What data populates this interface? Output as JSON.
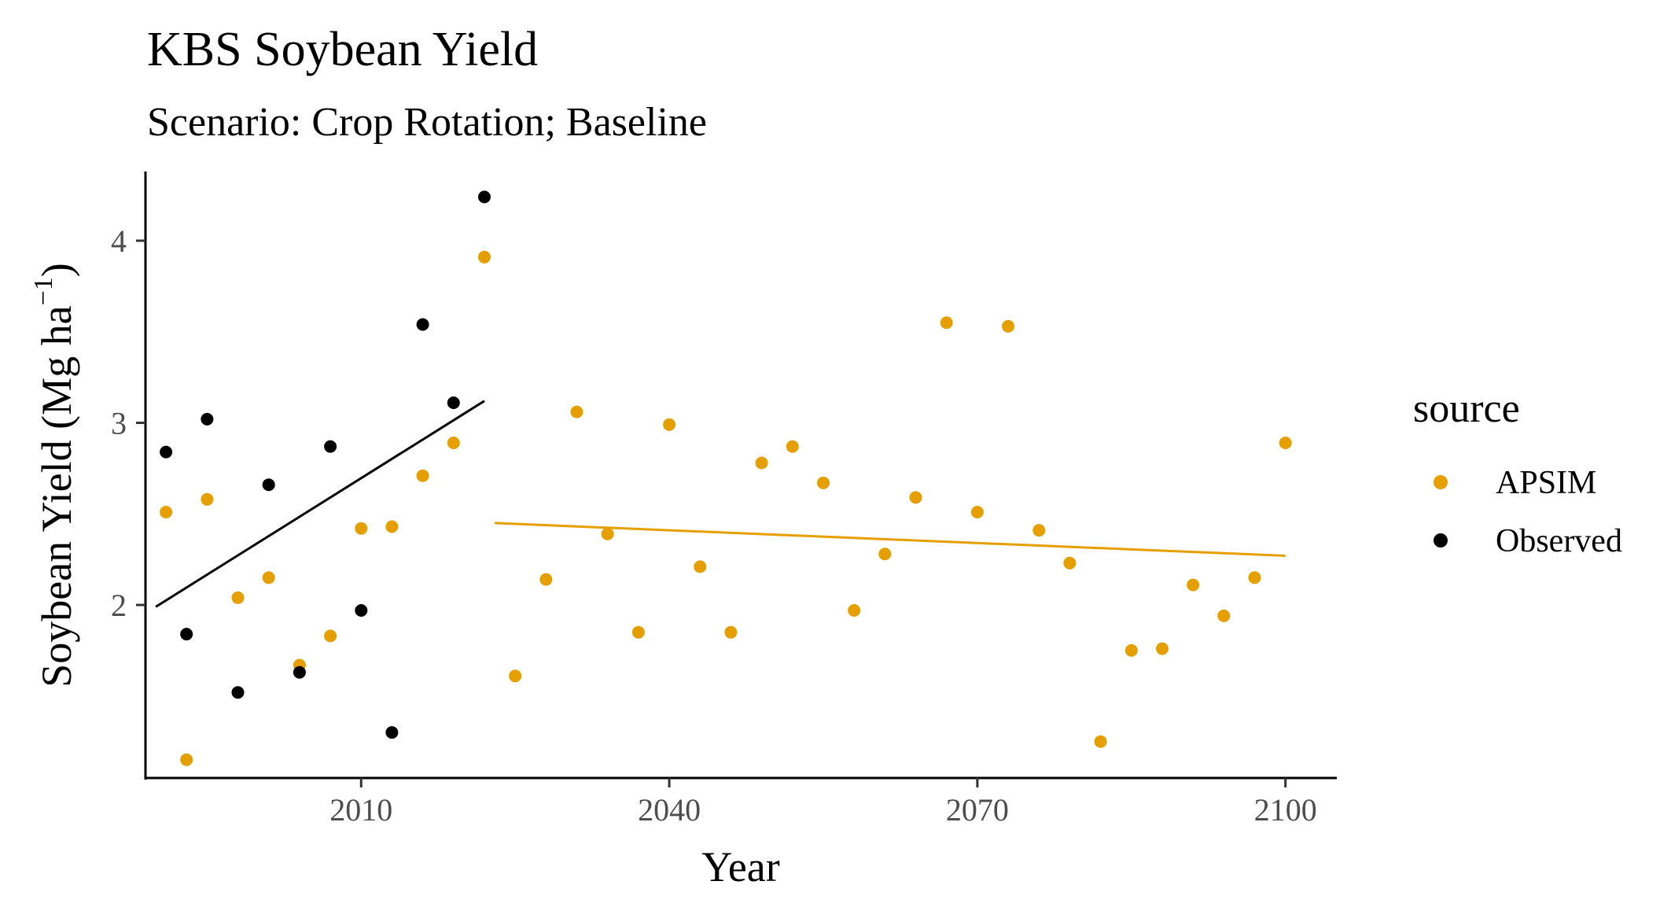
{
  "chart_data": {
    "type": "scatter",
    "title": "KBS Soybean Yield",
    "subtitle": "Scenario: Crop Rotation; Baseline",
    "xlabel": "Year",
    "ylabel": "Soybean Yield (Mg ha",
    "ylabel_unit_exponent": "−1",
    "ylabel_close": ")",
    "xlim": [
      1989,
      2105
    ],
    "ylim": [
      1.05,
      4.38
    ],
    "x_ticks": [
      2010,
      2040,
      2070,
      2100
    ],
    "y_ticks": [
      2,
      3,
      4
    ],
    "grid": false,
    "legend": {
      "title": "source",
      "position": "right"
    },
    "series": [
      {
        "name": "APSIM",
        "color": "#E69F00",
        "points": [
          {
            "x": 1991,
            "y": 2.51
          },
          {
            "x": 1993,
            "y": 1.15
          },
          {
            "x": 1995,
            "y": 2.58
          },
          {
            "x": 1998,
            "y": 2.04
          },
          {
            "x": 2001,
            "y": 2.15
          },
          {
            "x": 2004,
            "y": 1.67
          },
          {
            "x": 2007,
            "y": 1.83
          },
          {
            "x": 2010,
            "y": 2.42
          },
          {
            "x": 2013,
            "y": 2.43
          },
          {
            "x": 2016,
            "y": 2.71
          },
          {
            "x": 2019,
            "y": 2.89
          },
          {
            "x": 2022,
            "y": 3.91
          },
          {
            "x": 2025,
            "y": 1.61
          },
          {
            "x": 2028,
            "y": 2.14
          },
          {
            "x": 2031,
            "y": 3.06
          },
          {
            "x": 2034,
            "y": 2.39
          },
          {
            "x": 2037,
            "y": 1.85
          },
          {
            "x": 2040,
            "y": 2.99
          },
          {
            "x": 2043,
            "y": 2.21
          },
          {
            "x": 2046,
            "y": 1.85
          },
          {
            "x": 2049,
            "y": 2.78
          },
          {
            "x": 2052,
            "y": 2.87
          },
          {
            "x": 2055,
            "y": 2.67
          },
          {
            "x": 2058,
            "y": 1.97
          },
          {
            "x": 2061,
            "y": 2.28
          },
          {
            "x": 2064,
            "y": 2.59
          },
          {
            "x": 2067,
            "y": 3.55
          },
          {
            "x": 2070,
            "y": 2.51
          },
          {
            "x": 2073,
            "y": 3.53
          },
          {
            "x": 2076,
            "y": 2.41
          },
          {
            "x": 2079,
            "y": 2.23
          },
          {
            "x": 2082,
            "y": 1.25
          },
          {
            "x": 2085,
            "y": 1.75
          },
          {
            "x": 2088,
            "y": 1.76
          },
          {
            "x": 2091,
            "y": 2.11
          },
          {
            "x": 2094,
            "y": 1.94
          },
          {
            "x": 2097,
            "y": 2.15
          },
          {
            "x": 2100,
            "y": 2.89
          }
        ],
        "trend": {
          "x": [
            2023,
            2100
          ],
          "y": [
            2.45,
            2.27
          ]
        }
      },
      {
        "name": "Observed",
        "color": "#000000",
        "points": [
          {
            "x": 1991,
            "y": 2.84
          },
          {
            "x": 1993,
            "y": 1.84
          },
          {
            "x": 1995,
            "y": 3.02
          },
          {
            "x": 1998,
            "y": 1.52
          },
          {
            "x": 2001,
            "y": 2.66
          },
          {
            "x": 2004,
            "y": 1.63
          },
          {
            "x": 2007,
            "y": 2.87
          },
          {
            "x": 2010,
            "y": 1.97
          },
          {
            "x": 2013,
            "y": 1.3
          },
          {
            "x": 2016,
            "y": 3.54
          },
          {
            "x": 2019,
            "y": 3.11
          },
          {
            "x": 2022,
            "y": 4.24
          }
        ],
        "trend": {
          "x": [
            1990,
            2022
          ],
          "y": [
            1.99,
            3.12
          ]
        }
      }
    ]
  }
}
